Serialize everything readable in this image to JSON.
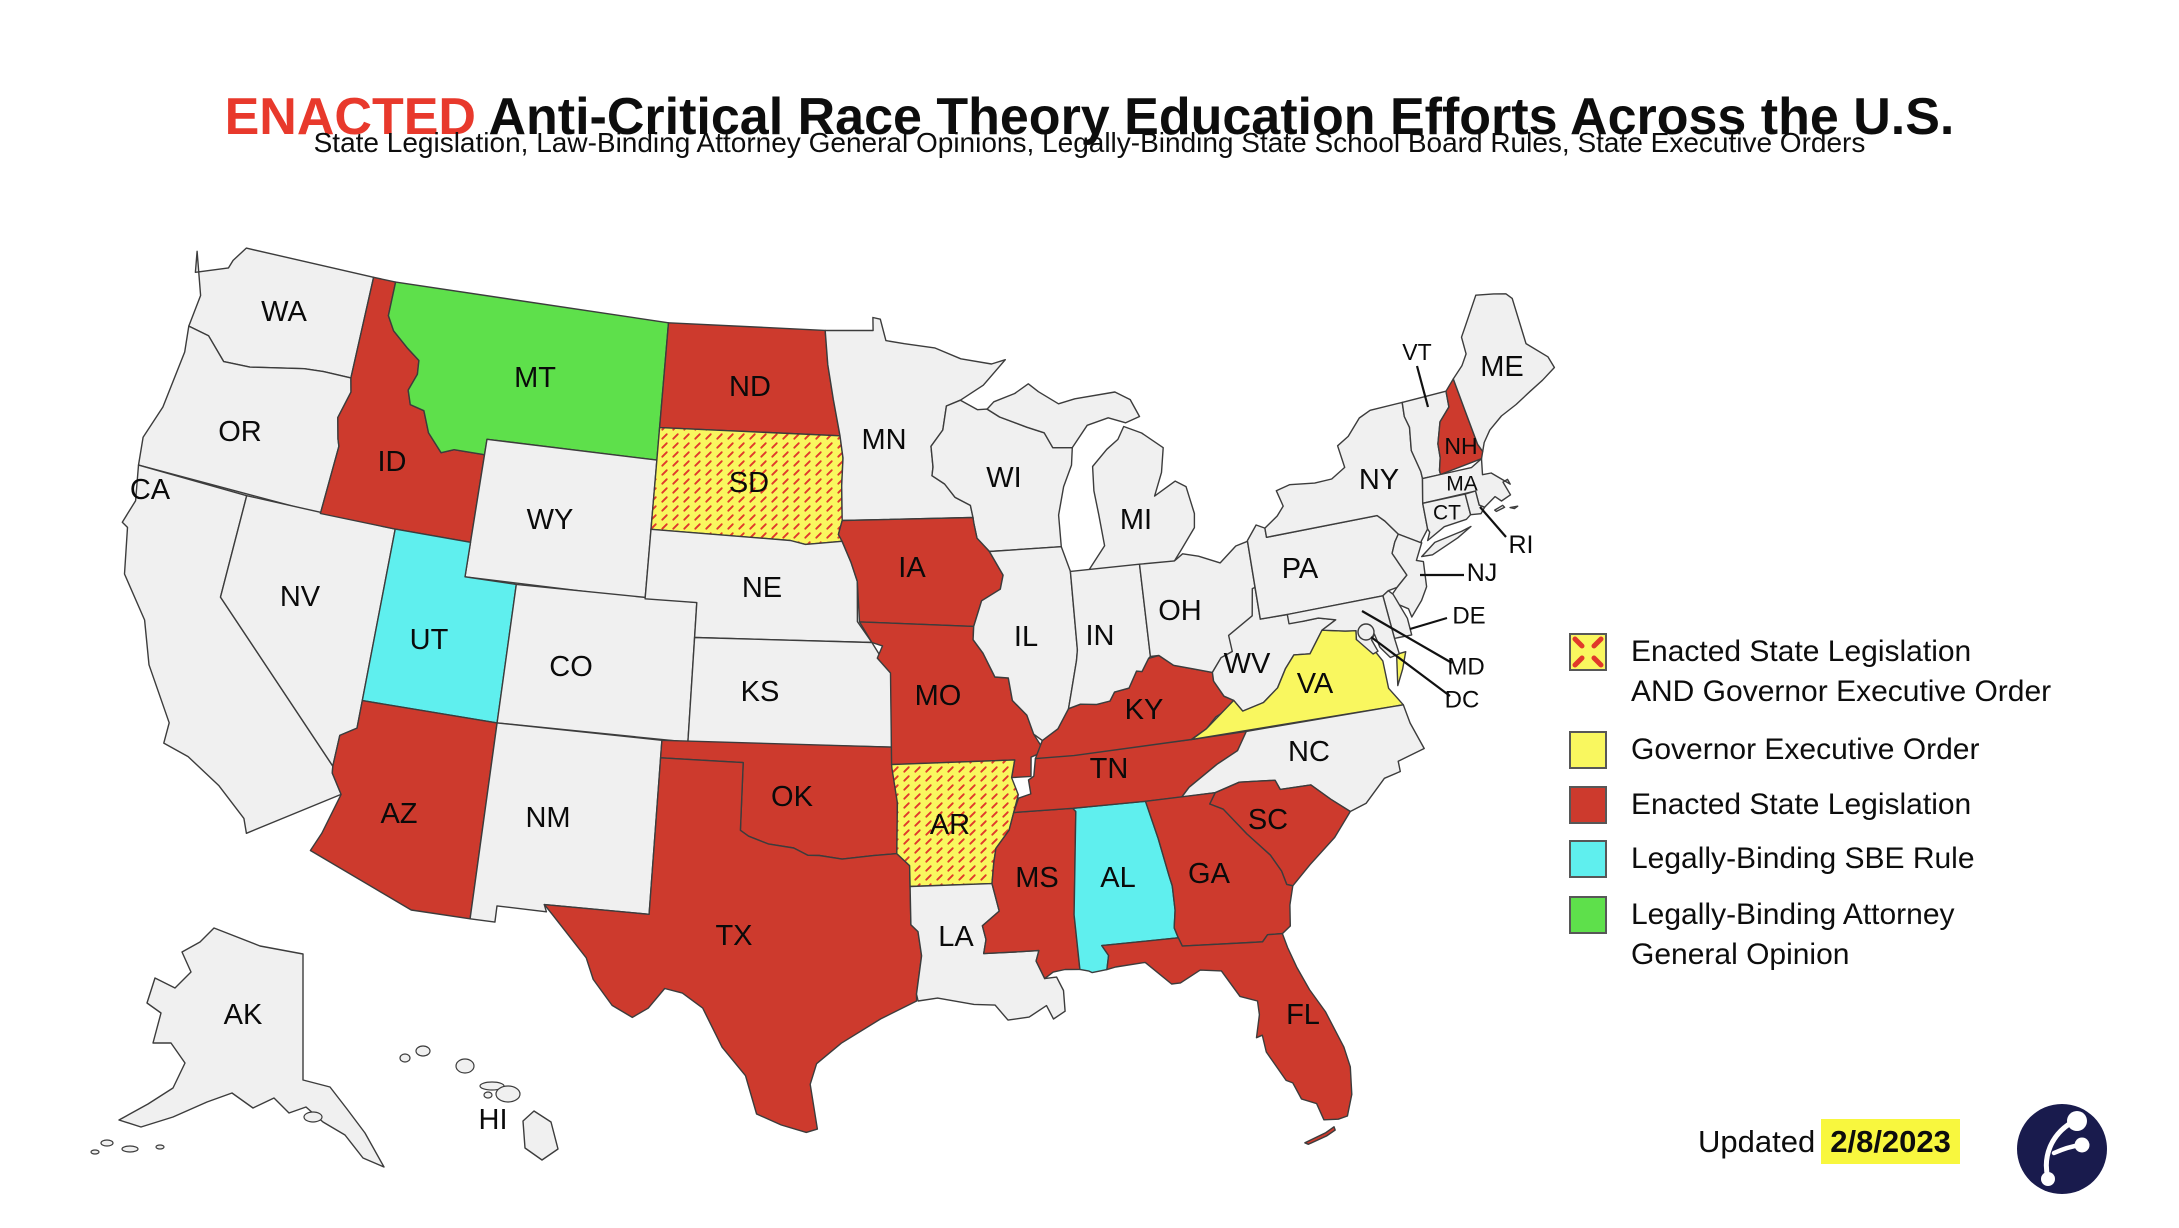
{
  "title": {
    "emphasis": "ENACTED",
    "rest": " Anti-Critical Race Theory Education Efforts Across the U.S."
  },
  "subtitle": "State Legislation, Law-Binding Attorney General Opinions, Legally-Binding State School Board Rules, State Executive Orders",
  "updated": {
    "label": "Updated",
    "date": "2/8/2023"
  },
  "colors": {
    "legislation": "#cd3a2d",
    "governor_eo": "#f9f75f",
    "sbe_rule": "#5fefee",
    "ag_opinion": "#5ee04b",
    "legislation_and_eo_bg": "#f9f75f",
    "legislation_and_eo_dash": "#e0392a",
    "none": "#f0f0f0",
    "border": "#3c3c3c",
    "title_emphasis": "#e8392c",
    "date_highlight": "#f8f73e",
    "logo_navy": "#191b4d",
    "pointer_line": "#111111",
    "label_text": "#0a0a0a"
  },
  "legend": {
    "items": [
      {
        "key": "legislation_and_eo",
        "lines": [
          "Enacted State Legislation",
          "AND Governor Executive Order"
        ]
      },
      {
        "key": "governor_eo",
        "lines": [
          "Governor Executive Order"
        ]
      },
      {
        "key": "legislation",
        "lines": [
          "Enacted State Legislation"
        ]
      },
      {
        "key": "sbe_rule",
        "lines": [
          "Legally-Binding SBE Rule"
        ]
      },
      {
        "key": "ag_opinion",
        "lines": [
          "Legally-Binding Attorney",
          "General Opinion"
        ]
      }
    ]
  },
  "map": {
    "states": [
      {
        "abbr": "WA",
        "category": "none"
      },
      {
        "abbr": "OR",
        "category": "none"
      },
      {
        "abbr": "CA",
        "category": "none"
      },
      {
        "abbr": "NV",
        "category": "none"
      },
      {
        "abbr": "ID",
        "category": "legislation"
      },
      {
        "abbr": "MT",
        "category": "ag_opinion"
      },
      {
        "abbr": "WY",
        "category": "none"
      },
      {
        "abbr": "UT",
        "category": "sbe_rule"
      },
      {
        "abbr": "CO",
        "category": "none"
      },
      {
        "abbr": "AZ",
        "category": "legislation"
      },
      {
        "abbr": "NM",
        "category": "none"
      },
      {
        "abbr": "ND",
        "category": "legislation"
      },
      {
        "abbr": "SD",
        "category": "legislation_and_eo"
      },
      {
        "abbr": "NE",
        "category": "none"
      },
      {
        "abbr": "KS",
        "category": "none"
      },
      {
        "abbr": "OK",
        "category": "legislation"
      },
      {
        "abbr": "TX",
        "category": "legislation"
      },
      {
        "abbr": "MN",
        "category": "none"
      },
      {
        "abbr": "IA",
        "category": "legislation"
      },
      {
        "abbr": "MO",
        "category": "legislation"
      },
      {
        "abbr": "AR",
        "category": "legislation_and_eo"
      },
      {
        "abbr": "LA",
        "category": "none"
      },
      {
        "abbr": "WI",
        "category": "none"
      },
      {
        "abbr": "MI",
        "category": "none"
      },
      {
        "abbr": "IL",
        "category": "none"
      },
      {
        "abbr": "IN",
        "category": "none"
      },
      {
        "abbr": "OH",
        "category": "none"
      },
      {
        "abbr": "KY",
        "category": "legislation"
      },
      {
        "abbr": "TN",
        "category": "legislation"
      },
      {
        "abbr": "MS",
        "category": "legislation"
      },
      {
        "abbr": "AL",
        "category": "sbe_rule"
      },
      {
        "abbr": "GA",
        "category": "legislation"
      },
      {
        "abbr": "FL",
        "category": "legislation"
      },
      {
        "abbr": "SC",
        "category": "legislation"
      },
      {
        "abbr": "NC",
        "category": "none"
      },
      {
        "abbr": "VA",
        "category": "governor_eo"
      },
      {
        "abbr": "WV",
        "category": "none"
      },
      {
        "abbr": "PA",
        "category": "none"
      },
      {
        "abbr": "NY",
        "category": "none"
      },
      {
        "abbr": "VT",
        "category": "none"
      },
      {
        "abbr": "NH",
        "category": "legislation"
      },
      {
        "abbr": "ME",
        "category": "none"
      },
      {
        "abbr": "MA",
        "category": "none"
      },
      {
        "abbr": "CT",
        "category": "none"
      },
      {
        "abbr": "RI",
        "category": "none"
      },
      {
        "abbr": "NJ",
        "category": "none"
      },
      {
        "abbr": "DE",
        "category": "none"
      },
      {
        "abbr": "MD",
        "category": "none"
      },
      {
        "abbr": "DC",
        "category": "none"
      },
      {
        "abbr": "AK",
        "category": "none"
      },
      {
        "abbr": "HI",
        "category": "none"
      }
    ]
  }
}
